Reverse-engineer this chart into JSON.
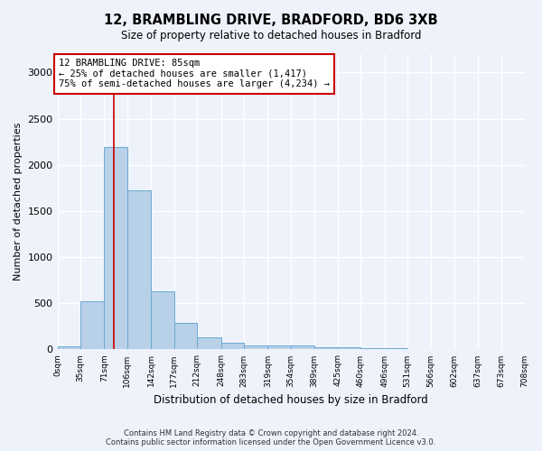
{
  "title_line1": "12, BRAMBLING DRIVE, BRADFORD, BD6 3XB",
  "title_line2": "Size of property relative to detached houses in Bradford",
  "xlabel": "Distribution of detached houses by size in Bradford",
  "ylabel": "Number of detached properties",
  "bar_values": [
    30,
    520,
    2190,
    1720,
    630,
    290,
    130,
    75,
    45,
    40,
    40,
    25,
    20,
    15,
    10,
    8,
    5,
    5,
    5,
    5
  ],
  "bin_edges": [
    0,
    35,
    71,
    106,
    142,
    177,
    212,
    248,
    283,
    319,
    354,
    389,
    425,
    460,
    496,
    531,
    566,
    602,
    637,
    673,
    708
  ],
  "bin_labels": [
    "0sqm",
    "35sqm",
    "71sqm",
    "106sqm",
    "142sqm",
    "177sqm",
    "212sqm",
    "248sqm",
    "283sqm",
    "319sqm",
    "354sqm",
    "389sqm",
    "425sqm",
    "460sqm",
    "496sqm",
    "531sqm",
    "566sqm",
    "602sqm",
    "637sqm",
    "673sqm",
    "708sqm"
  ],
  "bar_color": "#b8d0e8",
  "bar_edge_color": "#6aaad4",
  "annotation_box_text": "12 BRAMBLING DRIVE: 85sqm\n← 25% of detached houses are smaller (1,417)\n75% of semi-detached houses are larger (4,234) →",
  "annotation_box_color": "#ffffff",
  "annotation_box_edge_color": "#cc0000",
  "vline_x": 85,
  "vline_color": "#cc0000",
  "ylim": [
    0,
    3200
  ],
  "yticks": [
    0,
    500,
    1000,
    1500,
    2000,
    2500,
    3000
  ],
  "footer_line1": "Contains HM Land Registry data © Crown copyright and database right 2024.",
  "footer_line2": "Contains public sector information licensed under the Open Government Licence v3.0.",
  "background_color": "#eef2fb",
  "grid_color": "#ffffff"
}
